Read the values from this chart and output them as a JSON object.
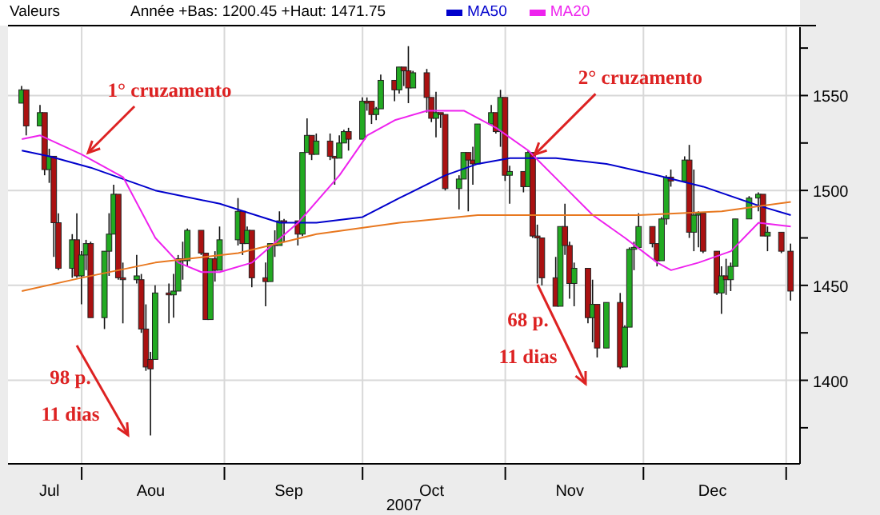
{
  "chart_data": {
    "type": "candlestick",
    "legend_title": "Valeurs",
    "xlabel": "2007",
    "legend": "top",
    "grid": true,
    "annotations": [
      "Année +Bas: 1200.45 +Haut: 1471.75",
      {
        "text": "1° cruzamento",
        "x": "2007-08-01",
        "y": 1519
      },
      {
        "text": "2° cruzamento",
        "x": "2007-11-06",
        "y": 1518
      },
      "98 p.",
      "11 dias",
      "68 p.",
      "11 dias"
    ],
    "xlim": [
      "2007-07-16",
      "2008-01-04"
    ],
    "xticks": [
      {
        "value": "2007-07-25",
        "label": "Jul"
      },
      {
        "value": "2007-08-01",
        "label": null
      },
      {
        "value": "2007-08-16",
        "label": "Aou"
      },
      {
        "value": "2007-09-01",
        "label": null
      },
      {
        "value": "2007-09-15",
        "label": "Sep"
      },
      {
        "value": "2007-10-01",
        "label": null
      },
      {
        "value": "2007-10-16",
        "label": "Oct"
      },
      {
        "value": "2007-11-01",
        "label": null
      },
      {
        "value": "2007-11-15",
        "label": "Nov"
      },
      {
        "value": "2007-12-01",
        "label": null
      },
      {
        "value": "2007-12-16",
        "label": "Dec"
      },
      {
        "value": "2008-01-01",
        "label": null
      }
    ],
    "ylim": [
      1356,
      1586
    ],
    "yticks": [
      {
        "value": 1375,
        "label": null
      },
      1400,
      {
        "value": 1425,
        "label": null
      },
      1450,
      {
        "value": 1475,
        "label": null
      },
      1500,
      {
        "value": 1525,
        "label": null
      },
      1550,
      {
        "value": 1575,
        "label": null
      }
    ],
    "x": [
      "2007-07-19",
      "2007-07-20",
      "2007-07-23",
      "2007-07-24",
      "2007-07-25",
      "2007-07-26",
      "2007-07-27",
      "2007-07-30",
      "2007-07-31",
      "2007-08-01",
      "2007-08-02",
      "2007-08-03",
      "2007-08-06",
      "2007-08-07",
      "2007-08-08",
      "2007-08-09",
      "2007-08-10",
      "2007-08-13",
      "2007-08-14",
      "2007-08-15",
      "2007-08-16",
      "2007-08-17",
      "2007-08-20",
      "2007-08-21",
      "2007-08-22",
      "2007-08-23",
      "2007-08-24",
      "2007-08-27",
      "2007-08-28",
      "2007-08-29",
      "2007-08-30",
      "2007-08-31",
      "2007-09-04",
      "2007-09-05",
      "2007-09-06",
      "2007-09-07",
      "2007-09-10",
      "2007-09-11",
      "2007-09-12",
      "2007-09-13",
      "2007-09-14",
      "2007-09-17",
      "2007-09-18",
      "2007-09-19",
      "2007-09-20",
      "2007-09-21",
      "2007-09-24",
      "2007-09-25",
      "2007-09-26",
      "2007-09-27",
      "2007-09-28",
      "2007-10-01",
      "2007-10-02",
      "2007-10-03",
      "2007-10-04",
      "2007-10-05",
      "2007-10-08",
      "2007-10-09",
      "2007-10-10",
      "2007-10-11",
      "2007-10-12",
      "2007-10-15",
      "2007-10-16",
      "2007-10-17",
      "2007-10-18",
      "2007-10-19",
      "2007-10-22",
      "2007-10-23",
      "2007-10-24",
      "2007-10-25",
      "2007-10-26",
      "2007-10-29",
      "2007-10-30",
      "2007-10-31",
      "2007-11-01",
      "2007-11-02",
      "2007-11-05",
      "2007-11-06",
      "2007-11-07",
      "2007-11-08",
      "2007-11-09",
      "2007-11-12",
      "2007-11-13",
      "2007-11-14",
      "2007-11-15",
      "2007-11-16",
      "2007-11-19",
      "2007-11-20",
      "2007-11-21",
      "2007-11-23",
      "2007-11-26",
      "2007-11-27",
      "2007-11-28",
      "2007-11-29",
      "2007-11-30",
      "2007-12-03",
      "2007-12-04",
      "2007-12-05",
      "2007-12-06",
      "2007-12-07",
      "2007-12-10",
      "2007-12-11",
      "2007-12-12",
      "2007-12-13",
      "2007-12-14",
      "2007-12-17",
      "2007-12-18",
      "2007-12-19",
      "2007-12-20",
      "2007-12-21",
      "2007-12-24",
      "2007-12-26",
      "2007-12-27",
      "2007-12-28",
      "2007-12-31",
      "2008-01-02"
    ],
    "ohlc": [
      [
        1546,
        1555,
        1546,
        1553
      ],
      [
        1553,
        1553,
        1529,
        1534
      ],
      [
        1534,
        1545,
        1534,
        1541
      ],
      [
        1541,
        1541,
        1508,
        1511
      ],
      [
        1511,
        1522,
        1504,
        1518
      ],
      [
        1518,
        1518,
        1465,
        1483
      ],
      [
        1483,
        1488,
        1458,
        1459
      ],
      [
        1459,
        1477,
        1454,
        1474
      ],
      [
        1474,
        1488,
        1454,
        1455
      ],
      [
        1455,
        1468,
        1440,
        1466
      ],
      [
        1466,
        1474,
        1458,
        1472
      ],
      [
        1472,
        1473,
        1433,
        1433
      ],
      [
        1433,
        1468,
        1427,
        1468
      ],
      [
        1468,
        1488,
        1455,
        1477
      ],
      [
        1477,
        1503,
        1477,
        1498
      ],
      [
        1498,
        1498,
        1453,
        1454
      ],
      [
        1454,
        1462,
        1430,
        1453
      ],
      [
        1453,
        1466,
        1451,
        1455
      ],
      [
        1453,
        1456,
        1425,
        1427
      ],
      [
        1427,
        1440,
        1405,
        1407
      ],
      [
        1411,
        1415,
        1371,
        1406
      ],
      [
        1411,
        1450,
        1411,
        1446
      ],
      [
        1446,
        1451,
        1430,
        1445
      ],
      [
        1445,
        1456,
        1433,
        1447
      ],
      [
        1447,
        1466,
        1447,
        1464
      ],
      [
        1464,
        1473,
        1453,
        1463
      ],
      [
        1463,
        1480,
        1460,
        1479
      ],
      [
        1479,
        1479,
        1466,
        1467
      ],
      [
        1467,
        1467,
        1432,
        1432
      ],
      [
        1432,
        1464,
        1432,
        1464
      ],
      [
        1464,
        1468,
        1452,
        1458
      ],
      [
        1458,
        1481,
        1458,
        1474
      ],
      [
        1474,
        1496,
        1471,
        1489
      ],
      [
        1489,
        1489,
        1466,
        1472
      ],
      [
        1472,
        1481,
        1472,
        1479
      ],
      [
        1479,
        1479,
        1449,
        1454
      ],
      [
        1454,
        1462,
        1439,
        1452
      ],
      [
        1452,
        1472,
        1452,
        1472
      ],
      [
        1472,
        1479,
        1465,
        1471
      ],
      [
        1471,
        1489,
        1471,
        1484
      ],
      [
        1484,
        1485,
        1473,
        1483
      ],
      [
        1484,
        1484,
        1471,
        1477
      ],
      [
        1477,
        1520,
        1476,
        1520
      ],
      [
        1520,
        1538,
        1520,
        1529
      ],
      [
        1529,
        1529,
        1516,
        1519
      ],
      [
        1519,
        1530,
        1519,
        1526
      ],
      [
        1526,
        1530,
        1516,
        1518
      ],
      [
        1518,
        1518,
        1503,
        1517
      ],
      [
        1517,
        1529,
        1517,
        1525
      ],
      [
        1525,
        1532,
        1525,
        1531
      ],
      [
        1531,
        1533,
        1521,
        1527
      ],
      [
        1527,
        1549,
        1527,
        1547
      ],
      [
        1547,
        1549,
        1542,
        1546
      ],
      [
        1547,
        1547,
        1535,
        1540
      ],
      [
        1540,
        1544,
        1537,
        1543
      ],
      [
        1543,
        1561,
        1543,
        1558
      ],
      [
        1558,
        1558,
        1547,
        1553
      ],
      [
        1553,
        1565,
        1551,
        1565
      ],
      [
        1565,
        1565,
        1555,
        1563
      ],
      [
        1563,
        1576,
        1546,
        1554
      ],
      [
        1554,
        1563,
        1554,
        1562
      ],
      [
        1562,
        1564,
        1541,
        1549
      ],
      [
        1549,
        1549,
        1536,
        1538
      ],
      [
        1538,
        1552,
        1528,
        1541
      ],
      [
        1541,
        1541,
        1533,
        1540
      ],
      [
        1540,
        1540,
        1500,
        1501
      ],
      [
        1501,
        1508,
        1490,
        1506
      ],
      [
        1506,
        1520,
        1506,
        1520
      ],
      [
        1520,
        1520,
        1489,
        1516
      ],
      [
        1516,
        1523,
        1503,
        1514
      ],
      [
        1514,
        1535,
        1514,
        1535
      ],
      [
        1535,
        1545,
        1535,
        1541
      ],
      [
        1541,
        1541,
        1530,
        1531
      ],
      [
        1531,
        1553,
        1523,
        1549
      ],
      [
        1549,
        1549,
        1505,
        1508
      ],
      [
        1508,
        1513,
        1493,
        1510
      ],
      [
        1510,
        1510,
        1499,
        1502
      ],
      [
        1502,
        1521,
        1502,
        1520
      ],
      [
        1520,
        1520,
        1475,
        1476
      ],
      [
        1476,
        1482,
        1451,
        1475
      ],
      [
        1475,
        1475,
        1450,
        1454
      ],
      [
        1454,
        1465,
        1439,
        1439
      ],
      [
        1439,
        1481,
        1439,
        1481
      ],
      [
        1481,
        1493,
        1466,
        1471
      ],
      [
        1471,
        1473,
        1443,
        1451
      ],
      [
        1451,
        1462,
        1439,
        1459
      ],
      [
        1459,
        1459,
        1430,
        1433
      ],
      [
        1433,
        1453,
        1420,
        1440
      ],
      [
        1440,
        1440,
        1412,
        1417
      ],
      [
        1417,
        1441,
        1417,
        1441
      ],
      [
        1441,
        1446,
        1406,
        1407
      ],
      [
        1407,
        1429,
        1407,
        1428
      ],
      [
        1428,
        1470,
        1428,
        1469
      ],
      [
        1469,
        1473,
        1458,
        1470
      ],
      [
        1470,
        1488,
        1470,
        1481
      ],
      [
        1481,
        1481,
        1470,
        1472
      ],
      [
        1472,
        1472,
        1460,
        1463
      ],
      [
        1463,
        1486,
        1463,
        1485
      ],
      [
        1485,
        1508,
        1482,
        1507
      ],
      [
        1507,
        1511,
        1502,
        1505
      ],
      [
        1505,
        1518,
        1505,
        1516
      ],
      [
        1516,
        1524,
        1475,
        1478
      ],
      [
        1478,
        1511,
        1468,
        1487
      ],
      [
        1487,
        1489,
        1470,
        1488
      ],
      [
        1488,
        1488,
        1467,
        1468
      ],
      [
        1468,
        1468,
        1445,
        1446
      ],
      [
        1446,
        1460,
        1435,
        1455
      ],
      [
        1455,
        1464,
        1445,
        1453
      ],
      [
        1453,
        1462,
        1447,
        1460
      ],
      [
        1460,
        1485,
        1460,
        1485
      ],
      [
        1485,
        1497,
        1485,
        1496
      ],
      [
        1496,
        1499,
        1489,
        1498
      ],
      [
        1498,
        1498,
        1476,
        1476
      ],
      [
        1476,
        1481,
        1468,
        1478
      ],
      [
        1478,
        1478,
        1467,
        1468
      ],
      [
        1468,
        1472,
        1442,
        1447
      ]
    ],
    "series": [
      {
        "name": "MA50",
        "type": "line",
        "color": "#0000cc",
        "x": [
          "2007-07-19",
          "2007-07-25",
          "2007-08-03",
          "2007-08-17",
          "2007-08-31",
          "2007-09-13",
          "2007-09-21",
          "2007-10-01",
          "2007-10-09",
          "2007-10-19",
          "2007-10-26",
          "2007-11-02",
          "2007-11-12",
          "2007-11-23",
          "2007-12-04",
          "2007-12-14",
          "2007-12-26",
          "2008-01-02"
        ],
        "values": [
          1521,
          1518,
          1512,
          1500,
          1493,
          1483,
          1483,
          1486,
          1496,
          1508,
          1514,
          1517,
          1517,
          1514,
          1508,
          1502,
          1492,
          1487
        ]
      },
      {
        "name": "MA20",
        "type": "line",
        "color": "#ee22ee",
        "x": [
          "2007-07-19",
          "2007-07-23",
          "2007-08-01",
          "2007-08-10",
          "2007-08-17",
          "2007-08-22",
          "2007-08-27",
          "2007-08-31",
          "2007-09-07",
          "2007-09-17",
          "2007-09-26",
          "2007-10-02",
          "2007-10-08",
          "2007-10-15",
          "2007-10-23",
          "2007-10-30",
          "2007-11-06",
          "2007-11-13",
          "2007-11-20",
          "2007-11-27",
          "2007-12-04",
          "2007-12-07",
          "2007-12-13",
          "2007-12-20",
          "2007-12-26",
          "2008-01-02"
        ],
        "values": [
          1527,
          1529,
          1519,
          1507,
          1475,
          1462,
          1457,
          1457,
          1462,
          1483,
          1508,
          1529,
          1537,
          1542,
          1542,
          1533,
          1521,
          1504,
          1487,
          1475,
          1462,
          1458,
          1462,
          1468,
          1483,
          1481
        ]
      },
      {
        "type": "line",
        "color": "#e87820",
        "x": [
          "2007-07-19",
          "2007-08-01",
          "2007-08-17",
          "2007-09-04",
          "2007-09-21",
          "2007-10-09",
          "2007-10-26",
          "2007-11-13",
          "2007-11-30",
          "2007-12-18",
          "2008-01-02"
        ],
        "values": [
          1447,
          1454,
          1462,
          1467,
          1477,
          1483,
          1487,
          1487,
          1487,
          1489,
          1494
        ]
      }
    ]
  }
}
